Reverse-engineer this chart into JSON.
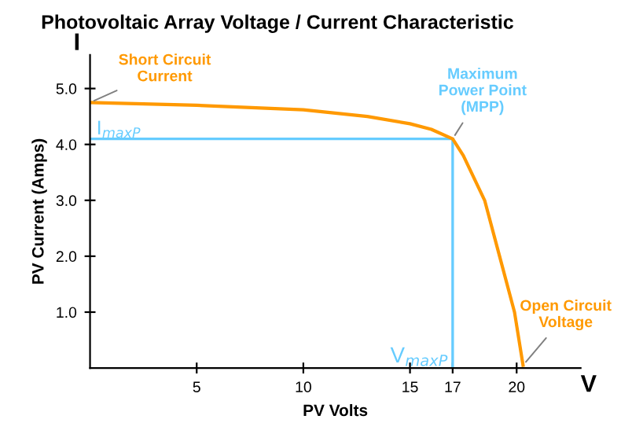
{
  "chart_data": {
    "type": "line",
    "title": "Photovoltaic Array Voltage / Current Characteristic",
    "xlabel": "PV Volts",
    "ylabel": "PV Current (Amps)",
    "x": [
      0,
      5,
      10,
      13,
      15,
      16,
      17,
      17.5,
      18.5,
      19.2,
      19.9,
      20.3
    ],
    "series": [
      {
        "color": "#ff9900",
        "values": [
          4.75,
          4.7,
          4.62,
          4.5,
          4.37,
          4.27,
          4.1,
          3.8,
          3.0,
          2.0,
          1.0,
          0.05
        ]
      }
    ],
    "xlim": [
      0,
      23
    ],
    "ylim": [
      0,
      5.6
    ],
    "xticks": [
      5,
      10,
      15,
      17,
      20
    ],
    "yticks": [
      {
        "value": 1,
        "label": "1.0"
      },
      {
        "value": 2,
        "label": "2.0"
      },
      {
        "value": 3,
        "label": "3.0"
      },
      {
        "value": 4,
        "label": "4.0"
      },
      {
        "value": 5,
        "label": "5.0"
      }
    ],
    "ref_lines": [
      {
        "axis": "y",
        "value": 4.1,
        "label": "I$_{maxP}$",
        "color": "#66ccff"
      },
      {
        "axis": "x",
        "value": 17,
        "label": "V$_{maxP}$",
        "color": "#66ccff"
      }
    ],
    "annotations": [
      {
        "text": "Short Circuit\nCurrent",
        "x": 0,
        "y": 4.75
      },
      {
        "text": "Maximum\nPower Point\n(MPP)",
        "x": 17,
        "y": 4.1
      },
      {
        "text": "Open Circuit\nVoltage",
        "x": 20.3,
        "y": 0.05
      },
      "I",
      "V"
    ],
    "grid": false,
    "legend": false,
    "marker": "none",
    "line_style": "solid"
  }
}
